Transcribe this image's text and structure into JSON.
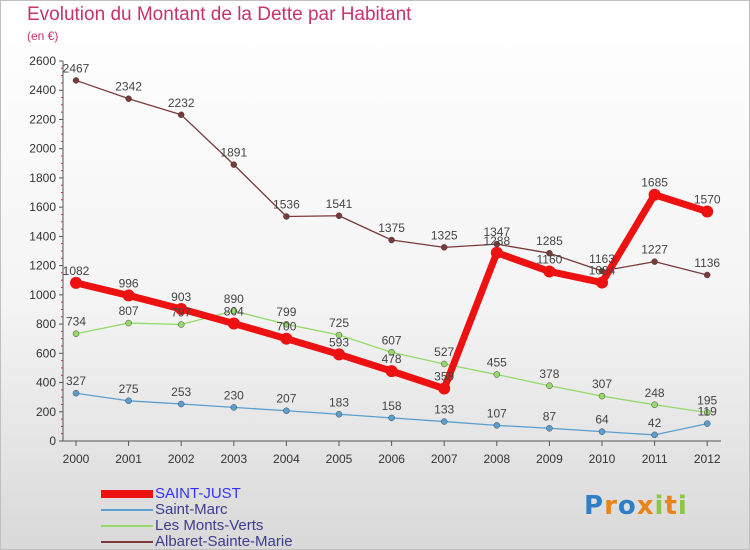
{
  "chart_data": {
    "type": "line",
    "title": "Evolution du Montant de la Dette par Habitant",
    "subtitle": "(en €)",
    "x": [
      "2000",
      "2001",
      "2002",
      "2003",
      "2004",
      "2005",
      "2006",
      "2007",
      "2008",
      "2009",
      "2010",
      "2011",
      "2012"
    ],
    "y_ticks": [
      "0",
      "200",
      "400",
      "600",
      "800",
      "1000",
      "1200",
      "1400",
      "1600",
      "1800",
      "2000",
      "2200",
      "2400",
      "2600"
    ],
    "ylim": [
      0,
      2600
    ],
    "grid": false,
    "legend_position": "bottom-left",
    "series": [
      {
        "name": "SAINT-JUST",
        "color": "#ee1111",
        "values": [
          1082,
          996,
          903,
          804,
          700,
          593,
          478,
          359,
          1288,
          1160,
          1084,
          1685,
          1570
        ]
      },
      {
        "name": "Saint-Marc",
        "color": "#5a9fd0",
        "values": [
          327,
          275,
          253,
          230,
          207,
          183,
          158,
          133,
          107,
          87,
          64,
          42,
          119
        ]
      },
      {
        "name": "Les Monts-Verts",
        "color": "#94d96a",
        "values": [
          734,
          807,
          797,
          890,
          799,
          725,
          607,
          527,
          455,
          378,
          307,
          248,
          195
        ]
      },
      {
        "name": "Albaret-Sainte-Marie",
        "color": "#7a3a3a",
        "values": [
          2467,
          2342,
          2232,
          1891,
          1536,
          1541,
          1375,
          1325,
          1347,
          1285,
          1163,
          1227,
          1136
        ]
      }
    ]
  },
  "logo": {
    "text": "Proxiti",
    "letter_colors": [
      "#2f7ec8",
      "#e8841a",
      "#2f7ec8",
      "#e8841a",
      "#8cc63f",
      "#e8841a",
      "#8cc63f"
    ]
  }
}
